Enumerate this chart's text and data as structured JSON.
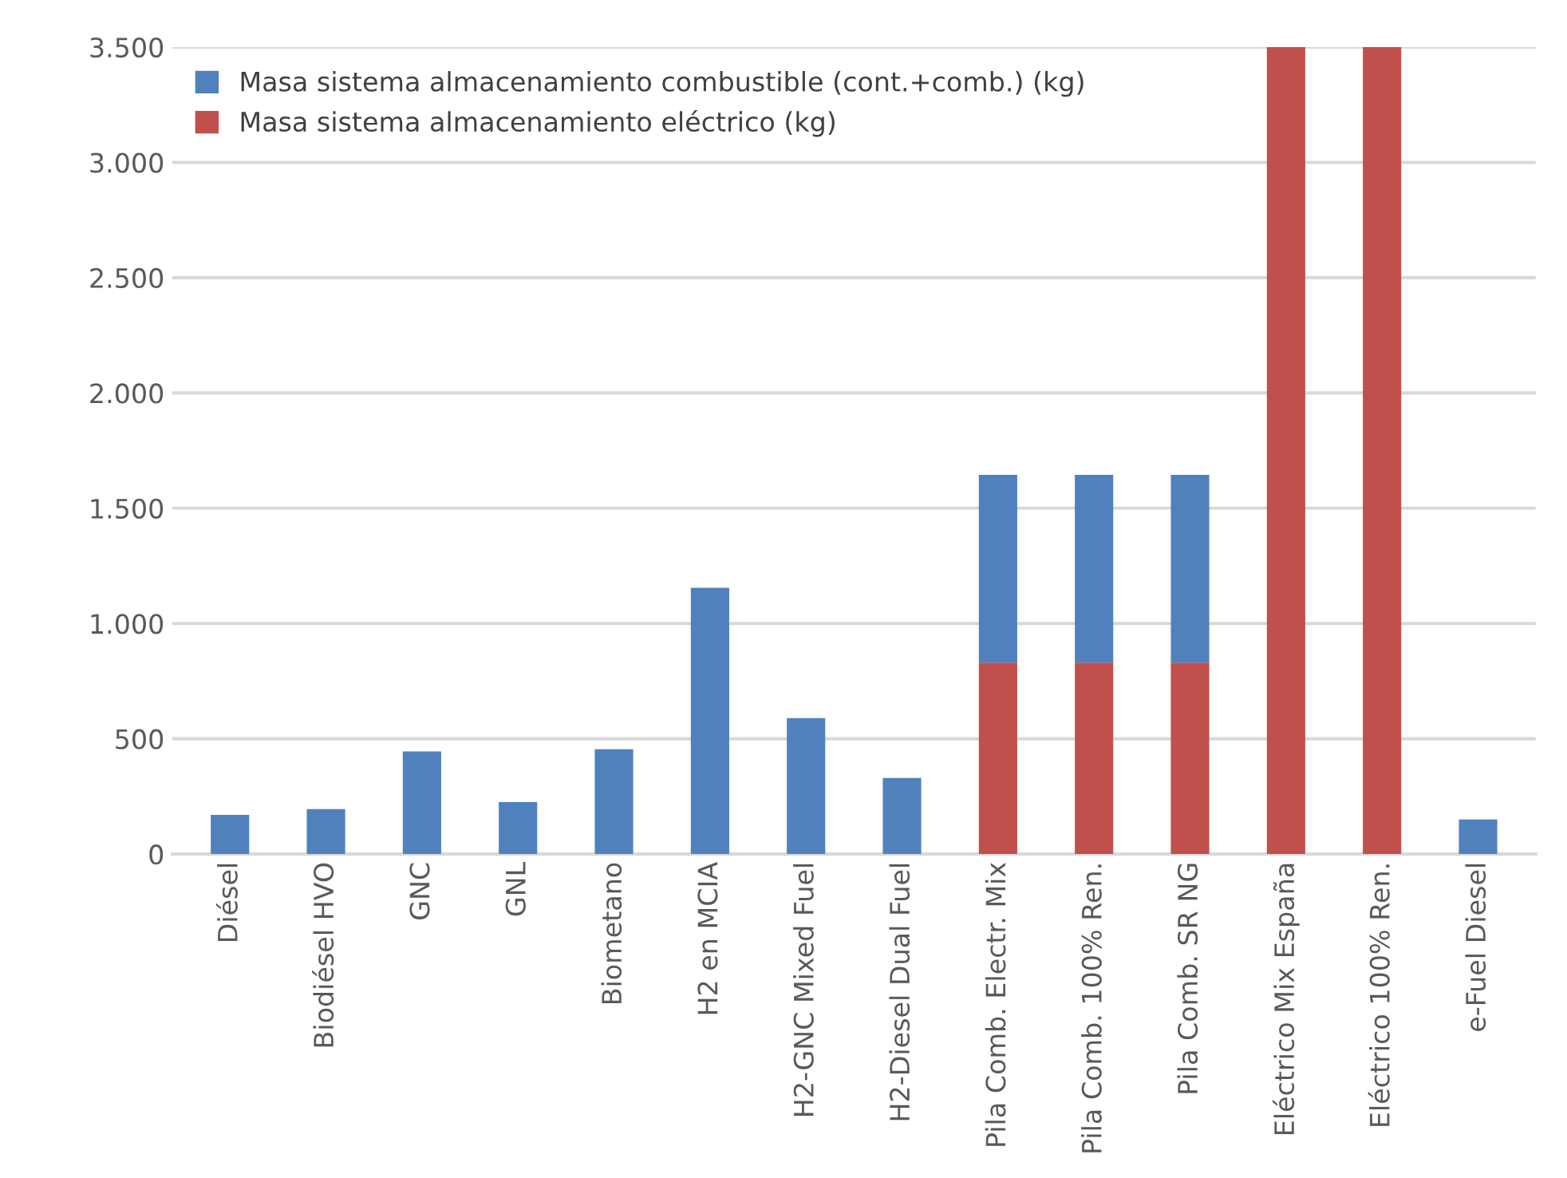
{
  "chart_data": {
    "type": "bar",
    "stacked": true,
    "categories": [
      "Diésel",
      "Biodiésel HVO",
      "GNC",
      "GNL",
      "Biometano",
      "H2 en MCIA",
      "H2-GNC Mixed Fuel",
      "H2-Diesel Dual Fuel",
      "Pila Comb. Electr. Mix",
      "Pila Comb. 100% Ren.",
      "Pila Comb. SR NG",
      "Eléctrico Mix España",
      "Eléctrico 100% Ren.",
      "e-Fuel Diesel"
    ],
    "series": [
      {
        "name": "Masa sistema almacenamiento eléctrico (kg)",
        "color": "#c0504d",
        "values": [
          0,
          0,
          0,
          0,
          0,
          0,
          0,
          0,
          830,
          830,
          830,
          3500,
          3500,
          0
        ]
      },
      {
        "name": "Masa sistema almacenamiento combustible (cont.+comb.) (kg)",
        "color": "#4f81bd",
        "values": [
          170,
          195,
          445,
          225,
          455,
          1155,
          590,
          330,
          815,
          815,
          815,
          0,
          0,
          150
        ]
      }
    ],
    "ylim": [
      0,
      3500
    ],
    "yticks": [
      {
        "value": 0,
        "label": "0"
      },
      {
        "value": 500,
        "label": "500"
      },
      {
        "value": 1000,
        "label": "1.000"
      },
      {
        "value": 1500,
        "label": "1.500"
      },
      {
        "value": 2000,
        "label": "2.000"
      },
      {
        "value": 2500,
        "label": "2.500"
      },
      {
        "value": 3000,
        "label": "3.000"
      },
      {
        "value": 3500,
        "label": "3.500"
      }
    ],
    "grid": "y",
    "legend": "top left"
  }
}
